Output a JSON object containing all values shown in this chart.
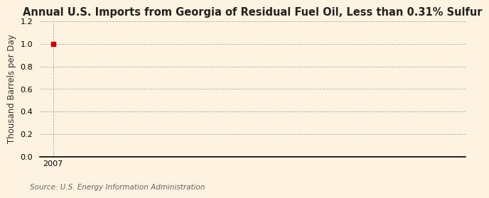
{
  "title": "Annual U.S. Imports from Georgia of Residual Fuel Oil, Less than 0.31% Sulfur",
  "ylabel": "Thousand Barrels per Day",
  "source": "Source: U.S. Energy Information Administration",
  "background_color": "#fdf3e0",
  "plot_bg_color": "#fdf3e0",
  "data_x": [
    2007
  ],
  "data_y": [
    1.0
  ],
  "point_color": "#cc0000",
  "ylim": [
    0.0,
    1.2
  ],
  "yticks": [
    0.0,
    0.2,
    0.4,
    0.6,
    0.8,
    1.0,
    1.2
  ],
  "xlim": [
    2006.7,
    2016.3
  ],
  "xticks": [
    2007
  ],
  "grid_color": "#b0b0b0",
  "vline_color": "#b0b0b0",
  "axis_color": "#000000",
  "title_fontsize": 10.5,
  "label_fontsize": 8.5,
  "tick_fontsize": 8,
  "source_fontsize": 7.5
}
